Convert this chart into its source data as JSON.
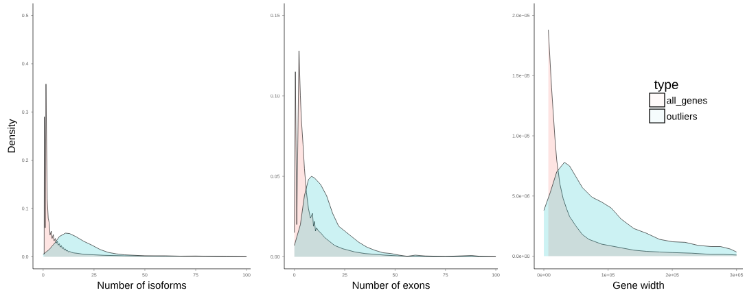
{
  "chart_data": [
    {
      "type": "area",
      "xlabel": "Number of isoforms",
      "ylabel": "Density",
      "xlim": [
        -5,
        102
      ],
      "ylim": [
        -0.025,
        0.525
      ],
      "xticks": [
        0,
        25,
        50,
        75,
        100
      ],
      "yticks": [
        {
          "value": 0,
          "label": "0.0"
        },
        {
          "value": 0.1,
          "label": "0.1"
        },
        {
          "value": 0.2,
          "label": "0.2"
        },
        {
          "value": 0.3,
          "label": "0.3"
        },
        {
          "value": 0.4,
          "label": "0.4"
        },
        {
          "value": 0.5,
          "label": "0.5"
        }
      ],
      "series": [
        {
          "color": "#f8766d",
          "x": [
            0.5,
            0.6,
            1.0,
            1.4,
            2.0,
            2.5,
            3.0,
            3.4,
            4.0,
            4.4,
            5.0,
            5.4,
            6,
            6.4,
            7,
            7.4,
            8,
            8.4,
            9,
            9.4,
            10,
            10.4,
            11,
            11.4,
            12,
            12.4,
            13,
            14,
            15,
            17,
            20,
            25,
            30,
            40,
            50,
            60,
            75,
            90,
            100
          ],
          "values": [
            0.005,
            0.29,
            0.06,
            0.358,
            0.12,
            0.08,
            0.07,
            0.045,
            0.053,
            0.038,
            0.046,
            0.033,
            0.038,
            0.028,
            0.032,
            0.024,
            0.027,
            0.02,
            0.023,
            0.017,
            0.019,
            0.014,
            0.016,
            0.012,
            0.013,
            0.01,
            0.011,
            0.009,
            0.008,
            0.007,
            0.005,
            0.004,
            0.003,
            0.002,
            0.0015,
            0.001,
            0.0015,
            0.0005,
            0.0
          ]
        },
        {
          "color": "#00bfc4",
          "x": [
            0,
            3,
            6,
            8,
            11,
            13,
            16,
            20,
            24,
            28,
            32,
            36,
            40,
            50,
            60,
            70,
            80,
            90,
            100
          ],
          "values": [
            0.005,
            0.015,
            0.03,
            0.042,
            0.049,
            0.048,
            0.042,
            0.032,
            0.024,
            0.015,
            0.009,
            0.006,
            0.004,
            0.002,
            0.002,
            0.001,
            0.001,
            0.0005,
            0.0
          ]
        }
      ]
    },
    {
      "type": "area",
      "xlabel": "Number of exons",
      "xlim": [
        -5,
        101
      ],
      "ylim": [
        -0.0075,
        0.1575
      ],
      "xticks": [
        0,
        25,
        50,
        75,
        100
      ],
      "yticks": [
        {
          "value": 0,
          "label": "0.00"
        },
        {
          "value": 0.05,
          "label": "0.05"
        },
        {
          "value": 0.1,
          "label": "0.10"
        },
        {
          "value": 0.15,
          "label": "0.15"
        }
      ],
      "series": [
        {
          "color": "#f8766d",
          "x": [
            0,
            0.5,
            1.2,
            2.3,
            3,
            3.5,
            4.3,
            5,
            6,
            7,
            8,
            9,
            9.5,
            10,
            10.5,
            11,
            12,
            13,
            15,
            17,
            20,
            24,
            30,
            35,
            45,
            60,
            80,
            100
          ],
          "values": [
            0.015,
            0.115,
            0.02,
            0.128,
            0.1,
            0.085,
            0.07,
            0.055,
            0.04,
            0.03,
            0.024,
            0.027,
            0.019,
            0.022,
            0.016,
            0.018,
            0.016,
            0.015,
            0.012,
            0.01,
            0.007,
            0.005,
            0.003,
            0.002,
            0.001,
            0.0,
            0.0,
            0.0
          ]
        },
        {
          "color": "#00bfc4",
          "x": [
            0,
            3,
            5,
            7,
            8.5,
            10,
            13,
            16,
            19,
            22,
            25,
            28,
            32,
            36,
            40,
            44,
            48,
            52,
            56,
            60,
            65,
            75,
            88,
            92,
            100
          ],
          "values": [
            0.007,
            0.02,
            0.038,
            0.048,
            0.05,
            0.049,
            0.045,
            0.038,
            0.027,
            0.019,
            0.016,
            0.013,
            0.009,
            0.006,
            0.004,
            0.0025,
            0.002,
            0.001,
            0.0003,
            0.001,
            0.0005,
            0.0002,
            0.0008,
            0.0003,
            0.0
          ]
        }
      ]
    },
    {
      "type": "area",
      "xlabel": "Gene width",
      "xlim": [
        -15000,
        310000
      ],
      "ylim": [
        -1.05e-06,
        2.1e-05
      ],
      "legend": "right",
      "legend_title": "type",
      "xticks": [
        {
          "value": 0,
          "label": "0e+00"
        },
        {
          "value": 100000,
          "label": "1e+05"
        },
        {
          "value": 200000,
          "label": "2e+05"
        },
        {
          "value": 300000,
          "label": "3e+05"
        }
      ],
      "yticks": [
        {
          "value": 0,
          "label": "0.0e+00"
        },
        {
          "value": 5e-06,
          "label": "5.0e−06"
        },
        {
          "value": 1e-05,
          "label": "1.0e−05"
        },
        {
          "value": 1.5e-05,
          "label": "1.5e−05"
        },
        {
          "value": 2e-05,
          "label": "2.0e−05"
        }
      ],
      "series": [
        {
          "name": "all_genes",
          "color": "#f8766d",
          "x": [
            7000,
            12000,
            17000,
            20000,
            25000,
            30000,
            35000,
            40000,
            50000,
            60000,
            70000,
            80000,
            90000,
            100000,
            120000,
            140000,
            160000,
            180000,
            200000,
            230000,
            260000,
            280000,
            300000
          ],
          "values": [
            1.88e-05,
            1.4e-05,
            1e-05,
            8e-06,
            6e-06,
            4.8e-06,
            4e-06,
            3.3e-06,
            2.5e-06,
            1.8e-06,
            1.4e-06,
            1.2e-06,
            1e-06,
            9e-07,
            7e-07,
            5e-07,
            4e-07,
            3.5e-07,
            3e-07,
            2.5e-07,
            1.5e-07,
            1.5e-07,
            1e-07
          ]
        },
        {
          "name": "outliers",
          "color": "#00bfc4",
          "x": [
            0,
            10000,
            20000,
            32000,
            40000,
            50000,
            60000,
            75000,
            90000,
            105000,
            120000,
            140000,
            160000,
            180000,
            200000,
            220000,
            240000,
            260000,
            275000,
            290000,
            300000
          ],
          "values": [
            3.8e-06,
            5.3e-06,
            7e-06,
            7.8e-06,
            7.5e-06,
            6.6e-06,
            5.7e-06,
            4.9e-06,
            4.5e-06,
            4e-06,
            3.1e-06,
            2.3e-06,
            1.9e-06,
            1.4e-06,
            1.2e-06,
            1.15e-06,
            9e-07,
            8e-07,
            8e-07,
            6e-07,
            3.5e-07
          ]
        }
      ]
    }
  ]
}
